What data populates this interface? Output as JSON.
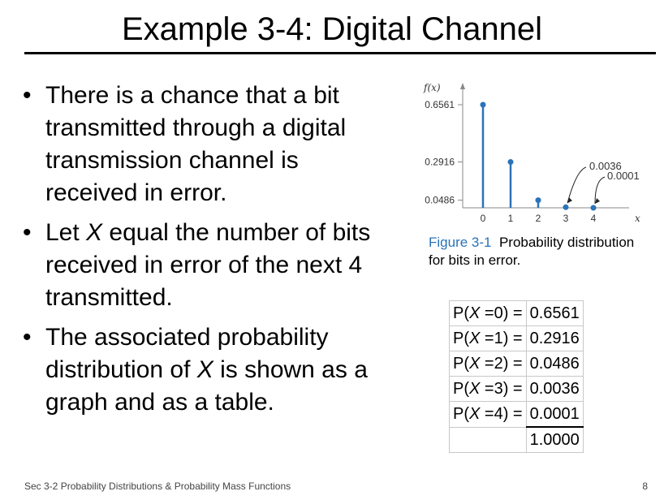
{
  "title": "Example 3-4:  Digital Channel",
  "bullets": [
    {
      "before": "There is a chance that a bit transmitted through a digital transmission channel is received in error.",
      "var": "",
      "after": ""
    },
    {
      "before": "Let ",
      "var": "X",
      "after": " equal the number of bits received in error of the next 4 transmitted."
    },
    {
      "before": "The associated probability distribution of ",
      "var": "X",
      "after": " is shown as a graph and as a table."
    }
  ],
  "chart_data": {
    "type": "scatter",
    "x": [
      0,
      1,
      2,
      3,
      4
    ],
    "y": [
      0.6561,
      0.2916,
      0.0486,
      0.0036,
      0.0001
    ],
    "ylabel": "f(x)",
    "xlabel": "x",
    "y_tick_labels": [
      "0.6561",
      "0.2916",
      "0.0486"
    ],
    "x_tick_labels": [
      "0",
      "1",
      "2",
      "3",
      "4"
    ],
    "annotations": [
      "0.0036",
      "0.0001"
    ],
    "color": "#2a73b8"
  },
  "caption": {
    "figure_label": "Figure 3-1",
    "text": "Probability distribution for bits in error."
  },
  "table": {
    "rows": [
      {
        "label_pre": "P(",
        "label_var": "X",
        "label_post": " =0) =",
        "value": "0.6561"
      },
      {
        "label_pre": "P(",
        "label_var": "X",
        "label_post": " =1) =",
        "value": "0.2916"
      },
      {
        "label_pre": "P(",
        "label_var": "X",
        "label_post": " =2) =",
        "value": "0.0486"
      },
      {
        "label_pre": "P(",
        "label_var": "X",
        "label_post": " =3) =",
        "value": "0.0036"
      },
      {
        "label_pre": "P(",
        "label_var": "X",
        "label_post": " =4) =",
        "value": "0.0001"
      }
    ],
    "total": "1.0000"
  },
  "footer": {
    "section": "Sec 3-2 Probability Distributions & Probability Mass Functions",
    "page": "8"
  }
}
